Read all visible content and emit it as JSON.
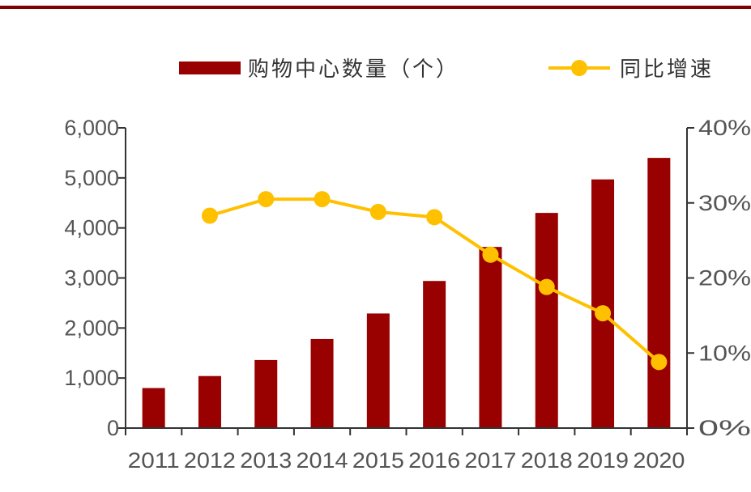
{
  "colors": {
    "bar": "#990000",
    "line": "#FFC000",
    "axis": "#333333",
    "text": "#555555",
    "top_rule": "#7F0000"
  },
  "chart_data": {
    "type": "bar",
    "categories": [
      "2011",
      "2012",
      "2013",
      "2014",
      "2015",
      "2016",
      "2017",
      "2018",
      "2019",
      "2020"
    ],
    "series": [
      {
        "name": "购物中心数量（个）",
        "type": "bar",
        "axis": "left",
        "values": [
          800,
          1040,
          1360,
          1780,
          2290,
          2940,
          3620,
          4300,
          4970,
          5400
        ]
      },
      {
        "name": "同比增速",
        "type": "line",
        "axis": "right",
        "values": [
          null,
          0.283,
          0.305,
          0.305,
          0.288,
          0.281,
          0.231,
          0.188,
          0.153,
          0.088
        ]
      }
    ],
    "left_axis": {
      "ylim": [
        0,
        6000
      ],
      "ticks": [
        0,
        1000,
        2000,
        3000,
        4000,
        5000,
        6000
      ],
      "tick_labels": [
        "0",
        "1,000",
        "2,000",
        "3,000",
        "4,000",
        "5,000",
        "6,000"
      ]
    },
    "right_axis": {
      "ylim": [
        0,
        0.4
      ],
      "ticks": [
        0,
        0.1,
        0.2,
        0.3,
        0.4
      ],
      "tick_labels": [
        "0%",
        "10%",
        "20%",
        "30%",
        "40%"
      ]
    },
    "legend": {
      "placement": "top",
      "entries": [
        "购物中心数量（个）",
        "同比增速"
      ]
    },
    "grid": false
  }
}
